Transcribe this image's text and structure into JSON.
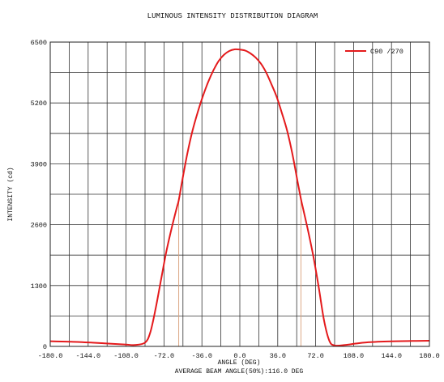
{
  "chart_data": {
    "type": "line",
    "title": "LUMINOUS INTENSITY DISTRIBUTION DIAGRAM",
    "xlabel": "ANGLE (DEG)",
    "ylabel": "INTENSITY (cd)",
    "footnote": "AVERAGE BEAM ANGLE(50%):116.0 DEG",
    "xlim": [
      -180,
      180
    ],
    "ylim": [
      0,
      6500
    ],
    "xticks": [
      "-180.0",
      "-144.0",
      "-108.0",
      "-72.0",
      "-36.0",
      "0.0",
      "36.0",
      "72.0",
      "108.0",
      "144.0",
      "180.0"
    ],
    "yticks": [
      "0",
      "1300",
      "2600",
      "3900",
      "5200",
      "6500"
    ],
    "grid": true,
    "legend_position": "top-right",
    "series": [
      {
        "name": "C90 /270",
        "color": "#e41a1c",
        "x": [
          -180,
          -160,
          -140,
          -120,
          -108,
          -100,
          -90,
          -85,
          -80,
          -75,
          -70,
          -65,
          -60,
          -58,
          -55,
          -50,
          -45,
          -40,
          -35,
          -30,
          -25,
          -20,
          -15,
          -10,
          -5,
          0,
          5,
          10,
          15,
          20,
          25,
          30,
          35,
          40,
          45,
          50,
          55,
          58,
          60,
          65,
          70,
          75,
          80,
          85,
          90,
          100,
          110,
          120,
          140,
          160,
          180
        ],
        "y": [
          110,
          100,
          80,
          55,
          40,
          30,
          80,
          300,
          800,
          1400,
          2000,
          2500,
          2950,
          3120,
          3500,
          4100,
          4600,
          5000,
          5350,
          5650,
          5900,
          6100,
          6230,
          6310,
          6345,
          6340,
          6320,
          6260,
          6170,
          6040,
          5850,
          5600,
          5330,
          4980,
          4600,
          4100,
          3500,
          3150,
          2950,
          2450,
          1900,
          1250,
          550,
          120,
          20,
          30,
          60,
          85,
          105,
          115,
          120
        ]
      }
    ],
    "beam_markers_x": [
      -58,
      58
    ]
  }
}
